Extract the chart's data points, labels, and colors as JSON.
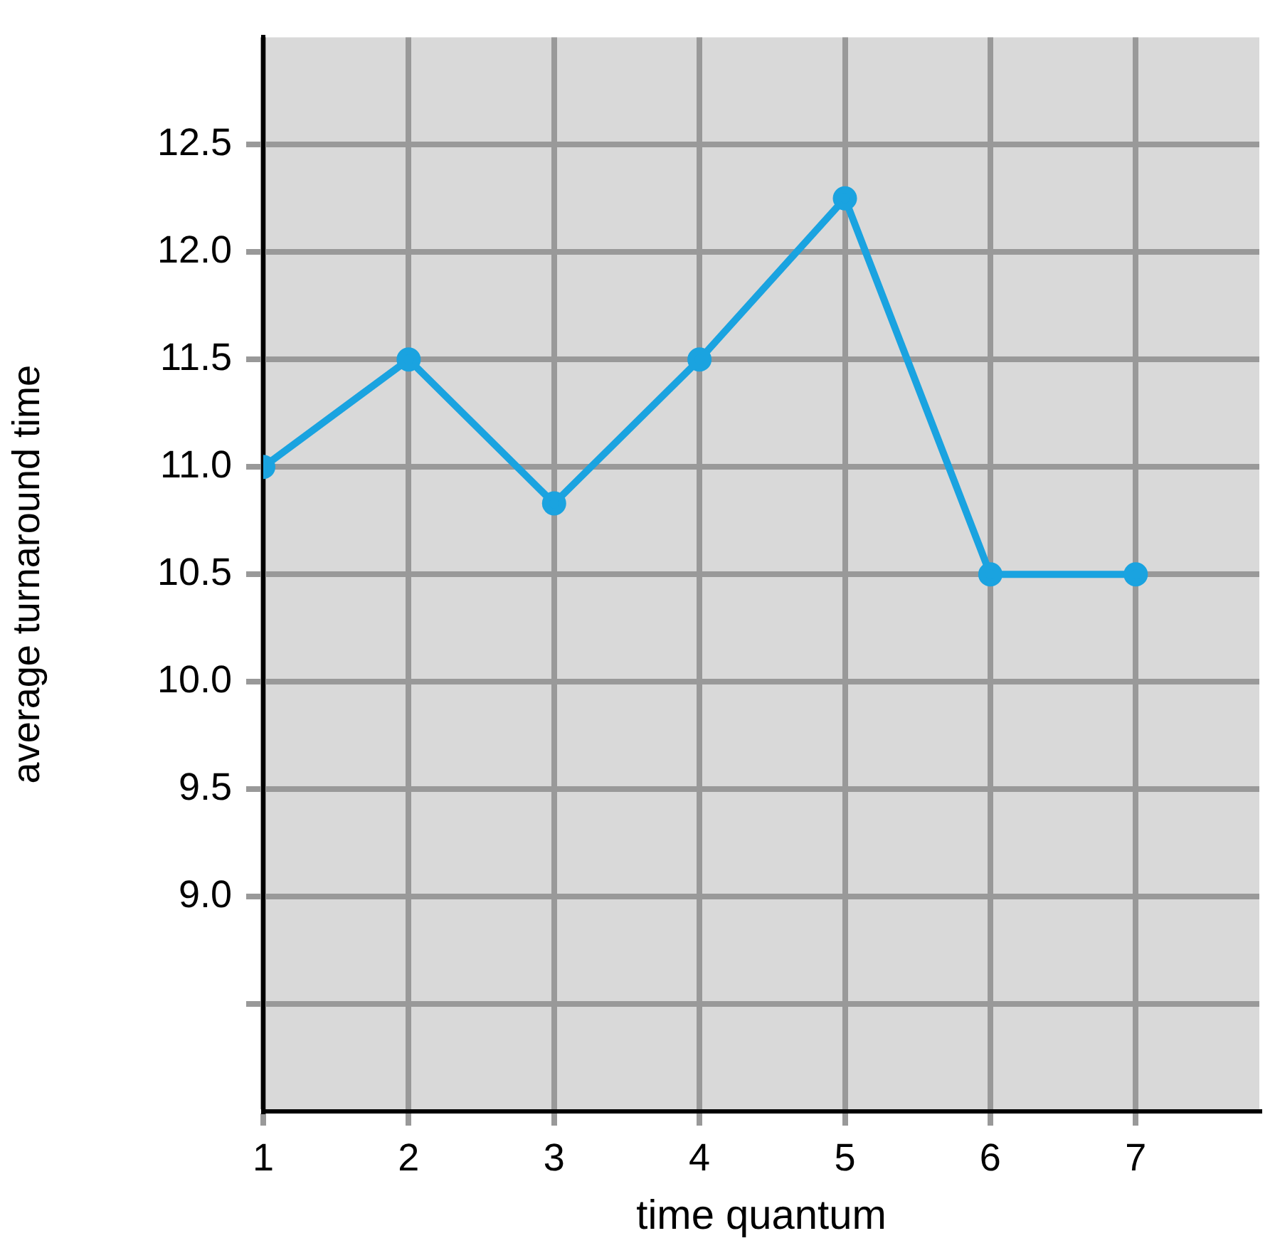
{
  "chart_data": {
    "type": "line",
    "xlabel": "time quantum",
    "ylabel": "average turnaround time",
    "x": [
      1,
      2,
      3,
      4,
      5,
      6,
      7
    ],
    "series": [
      {
        "color": "#1aa3e0",
        "values": [
          11.0,
          11.5,
          10.83,
          11.5,
          12.25,
          10.5,
          10.5
        ]
      }
    ],
    "xlim": [
      1,
      7.85
    ],
    "xticks": [
      1,
      2,
      3,
      4,
      5,
      6,
      7
    ],
    "ylim": [
      8,
      13
    ],
    "yticks": [
      {
        "value": 8.5,
        "label": null
      },
      {
        "value": 9,
        "label": "9.0"
      },
      {
        "value": 9.5,
        "label": "9.5"
      },
      {
        "value": 10,
        "label": "10.0"
      },
      {
        "value": 10.5,
        "label": "10.5"
      },
      {
        "value": 11,
        "label": "11.0"
      },
      {
        "value": 11.5,
        "label": "11.5"
      },
      {
        "value": 12,
        "label": "12.0"
      },
      {
        "value": 12.5,
        "label": "12.5"
      }
    ],
    "grid": true,
    "legend": false,
    "marker": "circle",
    "line_style": "solid"
  }
}
